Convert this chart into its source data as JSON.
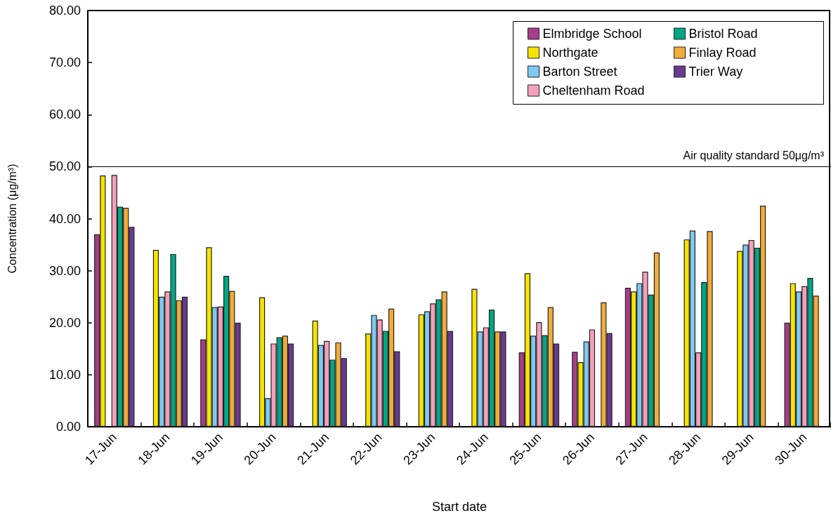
{
  "chart_data": {
    "type": "bar",
    "xlabel": "Start date",
    "ylabel": "Concentration (μg/m³)",
    "categories": [
      "17-Jun",
      "18-Jun",
      "19-Jun",
      "20-Jun",
      "21-Jun",
      "22-Jun",
      "23-Jun",
      "24-Jun",
      "25-Jun",
      "26-Jun",
      "27-Jun",
      "28-Jun",
      "29-Jun",
      "30-Jun"
    ],
    "series": [
      {
        "name": "Elmbridge School",
        "color": "#a63d8c",
        "values": [
          37,
          null,
          16.8,
          null,
          null,
          null,
          null,
          null,
          14.3,
          14.4,
          26.7,
          null,
          null,
          20
        ]
      },
      {
        "name": "Northgate",
        "color": "#f5e400",
        "values": [
          48.3,
          34,
          34.5,
          24.9,
          20.4,
          17.9,
          21.6,
          26.5,
          29.5,
          12.4,
          26,
          36,
          33.8,
          27.6
        ]
      },
      {
        "name": "Barton Street",
        "color": "#7fc8f0",
        "values": [
          null,
          25,
          23,
          5.5,
          15.7,
          21.5,
          22.2,
          18.3,
          17.5,
          16.4,
          27.6,
          37.7,
          35,
          26
        ]
      },
      {
        "name": "Cheltenham Road",
        "color": "#f4a0bd",
        "values": [
          48.4,
          26,
          23.1,
          16,
          16.5,
          20.6,
          23.7,
          19.1,
          20.1,
          18.7,
          29.8,
          14.3,
          35.9,
          27
        ]
      },
      {
        "name": "Bristol Road",
        "color": "#00a784",
        "values": [
          42.3,
          33.2,
          29,
          17.2,
          12.9,
          18.4,
          24.5,
          22.5,
          17.6,
          null,
          25.4,
          27.8,
          34.4,
          28.6
        ]
      },
      {
        "name": "Finlay Road",
        "color": "#f2ac3a",
        "values": [
          42.1,
          24.3,
          26.1,
          17.5,
          16.2,
          22.7,
          26,
          18.3,
          23,
          23.9,
          33.5,
          37.6,
          42.5,
          25.2
        ]
      },
      {
        "name": "Trier Way",
        "color": "#6a3a8e",
        "values": [
          38.4,
          25,
          20,
          16,
          13.2,
          14.5,
          18.4,
          18.3,
          16,
          18,
          null,
          null,
          null,
          null
        ]
      }
    ],
    "ylim": [
      0,
      80
    ],
    "yticks": [
      {
        "value": 0,
        "label": "0.00"
      },
      {
        "value": 10,
        "label": "10.00"
      },
      {
        "value": 20,
        "label": "20.00"
      },
      {
        "value": 30,
        "label": "30.00"
      },
      {
        "value": 40,
        "label": "40.00"
      },
      {
        "value": 50,
        "label": "50.00"
      },
      {
        "value": 60,
        "label": "60.00"
      },
      {
        "value": 70,
        "label": "70.00"
      },
      {
        "value": 80,
        "label": "80.00"
      }
    ],
    "ref_lines": [
      {
        "axis": "y",
        "value": 50,
        "label": "Air quality standard 50μg/m³",
        "color": "#000000"
      }
    ],
    "grid": false,
    "legend": "top right"
  }
}
